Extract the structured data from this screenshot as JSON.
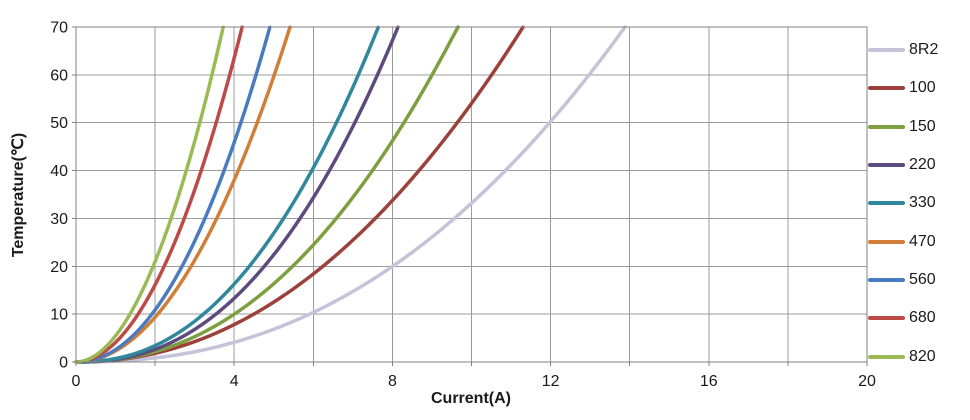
{
  "chart_data": {
    "type": "line",
    "title": "",
    "xlabel": "Current(A)",
    "ylabel": "Temperature(℃)",
    "xlim": [
      0,
      20
    ],
    "ylim": [
      0,
      70
    ],
    "x_tick_labels": [
      0,
      4,
      8,
      12,
      16,
      20
    ],
    "y_tick_labels": [
      0,
      10,
      20,
      30,
      40,
      50,
      60,
      70
    ],
    "x_grid_step": 2,
    "y_grid_step": 10,
    "grid": true,
    "legend_position": "right",
    "grid_color": "#9B9B9B",
    "axis_color": "#808080",
    "text_color": "#1A1A1A",
    "series": [
      {
        "name": "8R2",
        "color": "#C6C3D8",
        "model": {
          "k": 0.1753,
          "p": 2.277
        },
        "i_at_70C": 13.88,
        "points": [
          [
            0,
            0
          ],
          [
            1,
            0.2
          ],
          [
            2,
            0.8
          ],
          [
            3,
            2.1
          ],
          [
            4,
            4.1
          ],
          [
            5,
            6.8
          ],
          [
            6,
            10.4
          ],
          [
            7,
            14.8
          ],
          [
            8,
            20.0
          ],
          [
            9,
            26.2
          ],
          [
            10,
            33.4
          ],
          [
            11,
            41.5
          ],
          [
            12,
            50.6
          ],
          [
            13,
            60.7
          ],
          [
            13.88,
            70
          ]
        ]
      },
      {
        "name": "100",
        "color": "#9C403C",
        "model": {
          "k": 0.4194,
          "p": 2.11
        },
        "i_at_70C": 11.3,
        "points": [
          [
            0,
            0
          ],
          [
            1,
            0.4
          ],
          [
            2,
            1.8
          ],
          [
            3,
            4.3
          ],
          [
            4,
            7.8
          ],
          [
            5,
            12.5
          ],
          [
            6,
            18.4
          ],
          [
            7,
            25.5
          ],
          [
            8,
            33.8
          ],
          [
            9,
            43.3
          ],
          [
            10,
            54.0
          ],
          [
            11,
            66.0
          ],
          [
            11.3,
            70
          ]
        ]
      },
      {
        "name": "150",
        "color": "#7CA03F",
        "model": {
          "k": 0.4665,
          "p": 2.21
        },
        "i_at_70C": 9.66,
        "points": [
          [
            0,
            0
          ],
          [
            1,
            0.5
          ],
          [
            2,
            2.2
          ],
          [
            3,
            5.3
          ],
          [
            4,
            10.0
          ],
          [
            5,
            16.3
          ],
          [
            6,
            24.5
          ],
          [
            7,
            34.6
          ],
          [
            8,
            46.2
          ],
          [
            9,
            60.0
          ],
          [
            9.66,
            70
          ]
        ]
      },
      {
        "name": "220",
        "color": "#5D4B7E",
        "model": {
          "k": 0.523,
          "p": 2.335
        },
        "i_at_70C": 8.14,
        "points": [
          [
            0,
            0
          ],
          [
            1,
            0.5
          ],
          [
            2,
            2.6
          ],
          [
            3,
            6.8
          ],
          [
            4,
            13.3
          ],
          [
            5,
            22.4
          ],
          [
            6,
            34.4
          ],
          [
            7,
            49.2
          ],
          [
            8,
            67.1
          ],
          [
            8.14,
            70
          ]
        ]
      },
      {
        "name": "330",
        "color": "#31879B",
        "model": {
          "k": 0.7174,
          "p": 2.252
        },
        "i_at_70C": 7.64,
        "points": [
          [
            0,
            0
          ],
          [
            1,
            0.7
          ],
          [
            2,
            3.4
          ],
          [
            3,
            8.5
          ],
          [
            4,
            16.3
          ],
          [
            5,
            26.9
          ],
          [
            6,
            40.6
          ],
          [
            7,
            57.4
          ],
          [
            7.64,
            70
          ]
        ]
      },
      {
        "name": "470",
        "color": "#D07E38",
        "model": {
          "k": 2.311,
          "p": 2.02
        },
        "i_at_70C": 5.41,
        "points": [
          [
            0,
            0
          ],
          [
            1,
            2.3
          ],
          [
            2,
            9.4
          ],
          [
            3,
            21.3
          ],
          [
            4,
            38.0
          ],
          [
            5,
            59.7
          ],
          [
            5.41,
            70
          ]
        ]
      },
      {
        "name": "560",
        "color": "#4A7BBE",
        "model": {
          "k": 2.581,
          "p": 2.076
        },
        "i_at_70C": 4.9,
        "points": [
          [
            0,
            0
          ],
          [
            1,
            2.6
          ],
          [
            2,
            10.9
          ],
          [
            3,
            25.3
          ],
          [
            4,
            45.9
          ],
          [
            4.9,
            70
          ]
        ]
      },
      {
        "name": "680",
        "color": "#BE4A47",
        "model": {
          "k": 4.094,
          "p": 1.978
        },
        "i_at_70C": 4.2,
        "points": [
          [
            0,
            0
          ],
          [
            1,
            4.1
          ],
          [
            2,
            16.1
          ],
          [
            3,
            36.0
          ],
          [
            4,
            63.5
          ],
          [
            4.2,
            70
          ]
        ]
      },
      {
        "name": "820",
        "color": "#9BBA55",
        "model": {
          "k": 5.475,
          "p": 1.939
        },
        "i_at_70C": 3.72,
        "points": [
          [
            0,
            0
          ],
          [
            1,
            5.5
          ],
          [
            2,
            21.0
          ],
          [
            3,
            46.1
          ],
          [
            3.72,
            70
          ]
        ]
      }
    ]
  }
}
